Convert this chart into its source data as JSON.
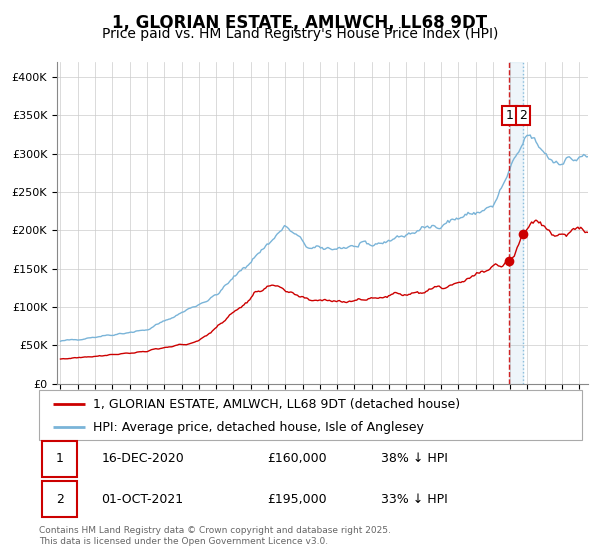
{
  "title": "1, GLORIAN ESTATE, AMLWCH, LL68 9DT",
  "subtitle": "Price paid vs. HM Land Registry's House Price Index (HPI)",
  "ylabel_ticks": [
    "£0",
    "£50K",
    "£100K",
    "£150K",
    "£200K",
    "£250K",
    "£300K",
    "£350K",
    "£400K"
  ],
  "ytick_values": [
    0,
    50000,
    100000,
    150000,
    200000,
    250000,
    300000,
    350000,
    400000
  ],
  "ylim": [
    0,
    420000
  ],
  "xlim_start": 1994.8,
  "xlim_end": 2025.5,
  "hpi_color": "#7ab4d8",
  "price_color": "#cc0000",
  "marker_color": "#cc0000",
  "vline1_color": "#cc0000",
  "vline2_color": "#7ab4d8",
  "background_color": "#ffffff",
  "grid_color": "#cccccc",
  "legend_label_red": "1, GLORIAN ESTATE, AMLWCH, LL68 9DT (detached house)",
  "legend_label_blue": "HPI: Average price, detached house, Isle of Anglesey",
  "purchase1_date_num": 2020.96,
  "purchase1_price": 160000,
  "purchase1_label": "16-DEC-2020",
  "purchase1_pct": "38% ↓ HPI",
  "purchase2_date_num": 2021.75,
  "purchase2_price": 195000,
  "purchase2_label": "01-OCT-2021",
  "purchase2_pct": "33% ↓ HPI",
  "copyright_text": "Contains HM Land Registry data © Crown copyright and database right 2025.\nThis data is licensed under the Open Government Licence v3.0.",
  "title_fontsize": 12,
  "subtitle_fontsize": 10,
  "tick_fontsize": 8,
  "legend_fontsize": 9,
  "table_fontsize": 9
}
